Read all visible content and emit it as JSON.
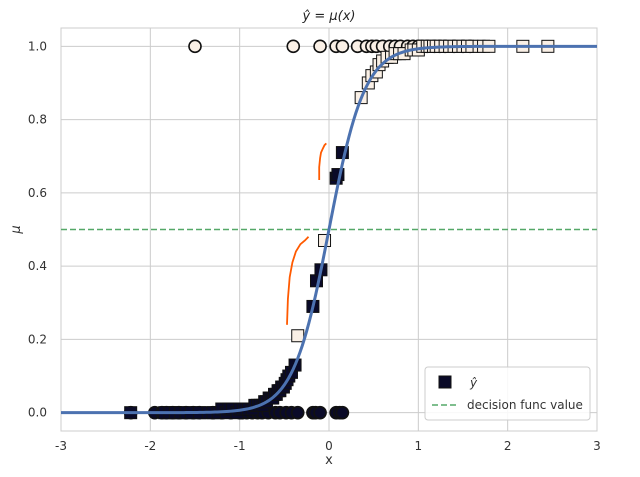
{
  "chart_data": {
    "type": "scatter",
    "title": "ŷ = μ(x)",
    "xlabel": "x",
    "ylabel": "μ",
    "xlim": [
      -3,
      3
    ],
    "ylim": [
      -0.05,
      1.05
    ],
    "x_ticks": [
      -3,
      -2,
      -1,
      0,
      1,
      2,
      3
    ],
    "y_ticks": [
      0.0,
      0.2,
      0.4,
      0.6,
      0.8,
      1.0
    ],
    "x_tick_labels": [
      "-3",
      "-2",
      "-1",
      "0",
      "1",
      "2",
      "3"
    ],
    "y_tick_labels": [
      "0.0",
      "0.2",
      "0.4",
      "0.6",
      "0.8",
      "1.0"
    ],
    "grid": true,
    "legend_position": "bottom-right",
    "colors": {
      "curve": "#4c72b0",
      "decision": "#55a868",
      "orange": "#ff5a00",
      "dark": "#0a0a28",
      "light": "#faf0e6",
      "grid": "#cccccc"
    },
    "curve": {
      "type": "logistic",
      "scale": 5.0,
      "x_range": [
        -3,
        3
      ]
    },
    "decision_line": {
      "y": 0.5
    },
    "series": [
      {
        "name": "ŷ",
        "marker": "square",
        "x": [
          -2.22,
          -1.84,
          -1.78,
          -1.72,
          -1.66,
          -1.6,
          -1.54,
          -1.45,
          -1.35,
          -1.3,
          -1.24,
          -1.2,
          -1.15,
          -1.12,
          -1.08,
          -1.03,
          -1.0,
          -0.96,
          -0.93,
          -0.9,
          -0.86,
          -0.83,
          -0.8,
          -0.77,
          -0.74,
          -0.72,
          -0.7,
          -0.67,
          -0.65,
          -0.63,
          -0.61,
          -0.59,
          -0.57,
          -0.55,
          -0.53,
          -0.51,
          -0.49,
          -0.47,
          -0.45,
          -0.42,
          -0.38,
          -0.35,
          -0.18,
          -0.14,
          -0.09,
          -0.05,
          0.08,
          0.1,
          0.15,
          0.36,
          0.44,
          0.48,
          0.53,
          0.56,
          0.6,
          0.65,
          0.7,
          0.74,
          0.79,
          0.84,
          0.92,
          0.95,
          1.0,
          1.05,
          1.1,
          1.13,
          1.17,
          1.2,
          1.25,
          1.3,
          1.35,
          1.4,
          1.45,
          1.5,
          1.55,
          1.6,
          1.68,
          1.73,
          1.79,
          2.17,
          2.45
        ],
        "y": [
          0.0,
          0.0,
          0.0,
          0.0,
          0.0,
          0.0,
          0.0,
          0.0,
          0.0,
          0.0,
          0.0,
          0.01,
          0.0,
          0.01,
          0.01,
          0.0,
          0.01,
          0.01,
          0.01,
          0.01,
          0.01,
          0.02,
          0.02,
          0.02,
          0.02,
          0.03,
          0.03,
          0.04,
          0.04,
          0.04,
          0.05,
          0.05,
          0.06,
          0.06,
          0.07,
          0.07,
          0.08,
          0.09,
          0.1,
          0.11,
          0.13,
          0.21,
          0.29,
          0.36,
          0.39,
          0.47,
          0.64,
          0.65,
          0.71,
          0.86,
          0.9,
          0.92,
          0.93,
          0.95,
          0.96,
          0.97,
          0.97,
          0.98,
          0.98,
          0.98,
          0.99,
          0.99,
          0.99,
          1.0,
          1.0,
          1.0,
          1.0,
          1.0,
          1.0,
          1.0,
          1.0,
          1.0,
          1.0,
          1.0,
          1.0,
          1.0,
          1.0,
          1.0,
          1.0,
          1.0,
          1.0
        ],
        "label": [
          0,
          0,
          0,
          0,
          0,
          0,
          0,
          0,
          0,
          0,
          0,
          0,
          0,
          0,
          0,
          0,
          0,
          0,
          0,
          0,
          0,
          0,
          0,
          0,
          0,
          0,
          0,
          0,
          0,
          0,
          0,
          0,
          0,
          0,
          0,
          0,
          0,
          0,
          0,
          0,
          0,
          1,
          0,
          0,
          0,
          1,
          0,
          0,
          0,
          1,
          1,
          1,
          1,
          1,
          1,
          1,
          1,
          1,
          1,
          1,
          1,
          1,
          1,
          1,
          1,
          1,
          1,
          1,
          1,
          1,
          1,
          1,
          1,
          1,
          1,
          1,
          1,
          1,
          1,
          1,
          1
        ]
      },
      {
        "name": "",
        "marker": "circle",
        "x": [
          -2.22,
          -1.95,
          -1.87,
          -1.82,
          -1.75,
          -1.68,
          -1.6,
          -1.52,
          -1.45,
          -1.3,
          -1.2,
          -1.1,
          -1.0,
          -0.97,
          -0.92,
          -0.86,
          -0.8,
          -0.75,
          -0.68,
          -0.6,
          -0.55,
          -0.48,
          -0.42,
          -0.35,
          -0.18,
          -0.15,
          -0.1,
          0.08,
          0.12,
          0.15
        ],
        "y": [
          0,
          0,
          0,
          0,
          0,
          0,
          0,
          0,
          0,
          0,
          0,
          0,
          0,
          0,
          0,
          0,
          0,
          0,
          0,
          0,
          0,
          0,
          0,
          0,
          0,
          0,
          0,
          0,
          0,
          0
        ]
      },
      {
        "name": "",
        "marker": "circle",
        "x": [
          -1.5,
          -0.4,
          -0.1,
          0.08,
          0.15,
          0.32,
          0.42,
          0.48,
          0.53,
          0.6,
          0.68,
          0.74,
          0.8,
          0.88,
          0.94,
          1.0,
          1.04,
          1.1,
          1.18,
          1.24,
          1.3,
          1.4,
          1.5,
          1.58
        ],
        "y": [
          1,
          1,
          1,
          1,
          1,
          1,
          1,
          1,
          1,
          1,
          1,
          1,
          1,
          1,
          1,
          1,
          1,
          1,
          1,
          1,
          1,
          1,
          1,
          1
        ]
      }
    ],
    "annotations": [
      {
        "x": [
          -0.47,
          -0.46,
          -0.44,
          -0.41,
          -0.37,
          -0.32,
          -0.27,
          -0.23
        ],
        "y": [
          0.24,
          0.31,
          0.37,
          0.41,
          0.44,
          0.46,
          0.47,
          0.48
        ]
      },
      {
        "x": [
          -0.11,
          -0.11,
          -0.1,
          -0.09,
          -0.07,
          -0.05,
          -0.03
        ],
        "y": [
          0.635,
          0.67,
          0.695,
          0.71,
          0.72,
          0.73,
          0.735
        ]
      }
    ],
    "legend": [
      {
        "label": "ŷ",
        "marker": "square"
      },
      {
        "label": "decision func value",
        "marker": "dashed-line"
      }
    ]
  }
}
